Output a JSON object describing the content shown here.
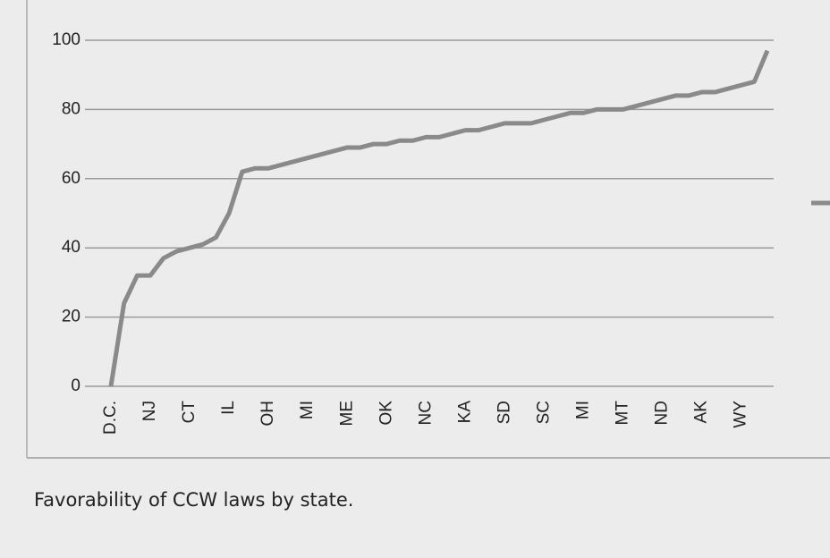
{
  "chart_data": {
    "type": "line",
    "caption": "Favorability of CCW laws by state.",
    "categories": [
      "D.C.",
      null,
      null,
      "NJ",
      null,
      null,
      "CT",
      null,
      null,
      "IL",
      null,
      null,
      "OH",
      null,
      null,
      "MI",
      null,
      null,
      "ME",
      null,
      null,
      "OK",
      null,
      null,
      "NC",
      null,
      null,
      "KA",
      null,
      null,
      "SD",
      null,
      null,
      "SC",
      null,
      null,
      "MI",
      null,
      null,
      "MT",
      null,
      null,
      "ND",
      null,
      null,
      "AK",
      null,
      null,
      "WY",
      null,
      null
    ],
    "series": [
      {
        "color": "#8a8a8a",
        "values": [
          0,
          24,
          32,
          32,
          37,
          39,
          40,
          41,
          43,
          50,
          62,
          63,
          63,
          64,
          65,
          66,
          67,
          68,
          69,
          69,
          70,
          70,
          71,
          71,
          72,
          72,
          73,
          74,
          74,
          75,
          76,
          76,
          76,
          77,
          78,
          79,
          79,
          80,
          80,
          80,
          81,
          82,
          83,
          84,
          84,
          85,
          85,
          86,
          87,
          88,
          97
        ]
      }
    ],
    "ylim": [
      0,
      100
    ],
    "yticks": [
      0,
      20,
      40,
      60,
      80,
      100
    ],
    "grid": true
  }
}
